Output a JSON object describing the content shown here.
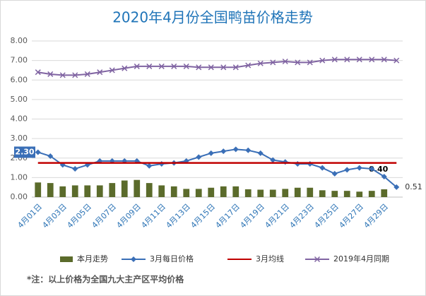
{
  "chart_data": {
    "type": "bar-line",
    "title": "2020年4月份全国鸭苗价格走势",
    "footnote": "*注：以上价格为全国九大主产区平均价格",
    "categories": [
      "4月01日",
      null,
      "4月03日",
      null,
      "4月05日",
      null,
      "4月07日",
      null,
      "4月09日",
      null,
      "4月11日",
      null,
      "4月13日",
      null,
      "4月15日",
      null,
      "4月17日",
      null,
      "4月19日",
      null,
      "4月21日",
      null,
      "4月23日",
      null,
      "4月25日",
      null,
      "4月27日",
      null,
      "4月29日",
      null
    ],
    "ylim": [
      0,
      8
    ],
    "yticks": [
      {
        "value": 0,
        "label": "0.00"
      },
      {
        "value": 1,
        "label": "1.00"
      },
      {
        "value": 2,
        "label": "2.00"
      },
      {
        "value": 3,
        "label": "3.00"
      },
      {
        "value": 4,
        "label": "4.00"
      },
      {
        "value": 5,
        "label": "5.00"
      },
      {
        "value": 6,
        "label": "6.00"
      },
      {
        "value": 7,
        "label": "7.00"
      },
      {
        "value": 8,
        "label": "8.00"
      }
    ],
    "grid": true,
    "legend": "bottom",
    "series": [
      {
        "name": "本月走势",
        "kind": "bar",
        "color": "#5b6b2b",
        "values": [
          0.75,
          0.72,
          0.55,
          0.6,
          0.6,
          0.6,
          0.72,
          0.85,
          0.88,
          0.72,
          0.6,
          0.55,
          0.42,
          0.42,
          0.48,
          0.55,
          0.55,
          0.4,
          0.38,
          0.38,
          0.42,
          0.48,
          0.48,
          0.35,
          0.32,
          0.32,
          0.28,
          0.32,
          0.4,
          null
        ],
        "value_labels": [
          null,
          null,
          null,
          null,
          null,
          null,
          null,
          null,
          null,
          null,
          null,
          null,
          null,
          null,
          null,
          null,
          null,
          null,
          null,
          null,
          null,
          null,
          null,
          null,
          null,
          null,
          null,
          null,
          "0.40",
          null
        ]
      },
      {
        "name": "3月每日价格",
        "kind": "line",
        "marker": "diamond",
        "color": "#3a6fb7",
        "values": [
          2.3,
          2.1,
          1.65,
          1.45,
          1.65,
          1.85,
          1.85,
          1.85,
          1.85,
          1.6,
          1.7,
          1.75,
          1.85,
          2.05,
          2.25,
          2.35,
          2.45,
          2.4,
          2.25,
          1.9,
          1.8,
          1.7,
          1.7,
          1.5,
          1.2,
          1.4,
          1.5,
          1.45,
          1.05,
          0.51
        ],
        "value_labels": [
          "2.30",
          null,
          null,
          null,
          null,
          null,
          null,
          null,
          null,
          null,
          null,
          null,
          null,
          null,
          null,
          null,
          null,
          null,
          null,
          null,
          null,
          null,
          null,
          null,
          null,
          null,
          null,
          null,
          null,
          "0.51"
        ]
      },
      {
        "name": "3月均线",
        "kind": "line",
        "marker": "none",
        "color": "#c00000",
        "values": [
          1.75,
          1.75,
          1.75,
          1.75,
          1.75,
          1.75,
          1.75,
          1.75,
          1.75,
          1.75,
          1.75,
          1.75,
          1.75,
          1.75,
          1.75,
          1.75,
          1.75,
          1.75,
          1.75,
          1.75,
          1.75,
          1.75,
          1.75,
          1.75,
          1.75,
          1.75,
          1.75,
          1.75,
          1.75,
          1.75
        ]
      },
      {
        "name": "2019年4月同期",
        "kind": "line",
        "marker": "x",
        "color": "#8064a2",
        "values": [
          6.4,
          6.3,
          6.25,
          6.25,
          6.3,
          6.4,
          6.5,
          6.6,
          6.7,
          6.7,
          6.7,
          6.7,
          6.7,
          6.65,
          6.65,
          6.65,
          6.65,
          6.75,
          6.85,
          6.9,
          6.95,
          6.9,
          6.9,
          7.0,
          7.05,
          7.05,
          7.05,
          7.05,
          7.05,
          7.0
        ]
      }
    ]
  }
}
